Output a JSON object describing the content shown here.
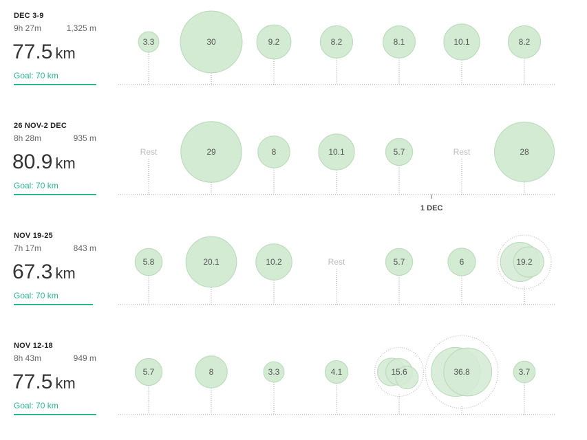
{
  "weeks": [
    {
      "title": "DEC 3-9",
      "time": "9h 27m",
      "elevation": "1,325 m",
      "distance": "77.5",
      "unit": "km",
      "goal": "Goal: 70 km",
      "goal_progress": 1.0,
      "days": [
        {
          "label": "3.3",
          "km": 3.3
        },
        {
          "label": "30",
          "km": 30
        },
        {
          "label": "9.2",
          "km": 9.2
        },
        {
          "label": "8.2",
          "km": 8.2
        },
        {
          "label": "8.1",
          "km": 8.1
        },
        {
          "label": "10.1",
          "km": 10.1
        },
        {
          "label": "8.2",
          "km": 8.2
        }
      ]
    },
    {
      "title": "26 NOV-2 DEC",
      "time": "8h 28m",
      "elevation": "935 m",
      "distance": "80.9",
      "unit": "km",
      "goal": "Goal: 70 km",
      "goal_progress": 1.0,
      "days": [
        {
          "label": "Rest",
          "km": 0,
          "rest": true
        },
        {
          "label": "29",
          "km": 29
        },
        {
          "label": "8",
          "km": 8
        },
        {
          "label": "10.1",
          "km": 10.1
        },
        {
          "label": "5.7",
          "km": 5.7
        },
        {
          "label": "Rest",
          "km": 0,
          "rest": true
        },
        {
          "label": "28",
          "km": 28
        }
      ],
      "marker": "1 DEC"
    },
    {
      "title": "NOV 19-25",
      "time": "7h 17m",
      "elevation": "843 m",
      "distance": "67.3",
      "unit": "km",
      "goal": "Goal: 70 km",
      "goal_progress": 0.96,
      "days": [
        {
          "label": "5.8",
          "km": 5.8
        },
        {
          "label": "20.1",
          "km": 20.1
        },
        {
          "label": "10.2",
          "km": 10.2
        },
        {
          "label": "Rest",
          "km": 0,
          "rest": true
        },
        {
          "label": "5.7",
          "km": 5.7
        },
        {
          "label": "6",
          "km": 6
        },
        {
          "label": "19.2",
          "km": 19.2,
          "multi": [
            12.0,
            7.2
          ]
        }
      ]
    },
    {
      "title": "NOV 12-18",
      "time": "8h 43m",
      "elevation": "949 m",
      "distance": "77.5",
      "unit": "km",
      "goal": "Goal: 70 km",
      "goal_progress": 1.0,
      "days": [
        {
          "label": "5.7",
          "km": 5.7
        },
        {
          "label": "8",
          "km": 8
        },
        {
          "label": "3.3",
          "km": 3.3
        },
        {
          "label": "4.1",
          "km": 4.1
        },
        {
          "label": "15.6",
          "km": 15.6,
          "multi": [
            6.0,
            5.6,
            4.0
          ]
        },
        {
          "label": "36.8",
          "km": 36.8,
          "multi": [
            18.8,
            18.0
          ]
        },
        {
          "label": "3.7",
          "km": 3.7
        }
      ]
    }
  ],
  "colors": {
    "bubble_fill": "#d3ead3",
    "bubble_stroke": "#b6d9b6",
    "goal": "#2ab58f",
    "axis": "#999999"
  }
}
